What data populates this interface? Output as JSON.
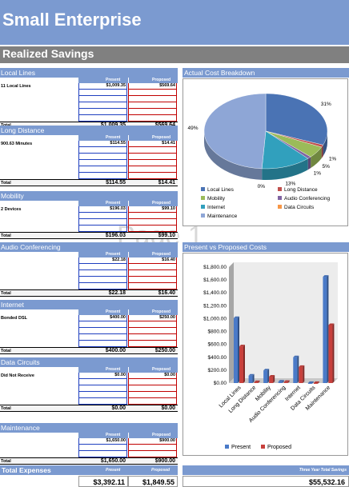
{
  "header": {
    "title": "Small Enterprise",
    "subtitle": "Realized Savings"
  },
  "watermark": "Page 1",
  "col_present": "Present",
  "col_proposed": "Proposed",
  "total_label": "Total",
  "sections": [
    {
      "title": "Local Lines",
      "rows": [
        {
          "name": "11 Local Lines",
          "present": "$1,009.35",
          "proposed": "$569.64"
        },
        {
          "name": "",
          "present": "",
          "proposed": ""
        },
        {
          "name": "",
          "present": "",
          "proposed": ""
        },
        {
          "name": "",
          "present": "",
          "proposed": ""
        },
        {
          "name": "",
          "present": "",
          "proposed": ""
        },
        {
          "name": "",
          "present": "",
          "proposed": ""
        }
      ],
      "total_present": "$1,009.35",
      "total_proposed": "$569.64"
    },
    {
      "title": "Long Distance",
      "rows": [
        {
          "name": "900.63 Minutes",
          "present": "$114.55",
          "proposed": "$14.41"
        },
        {
          "name": "",
          "present": "",
          "proposed": ""
        },
        {
          "name": "",
          "present": "",
          "proposed": ""
        },
        {
          "name": "",
          "present": "",
          "proposed": ""
        },
        {
          "name": "",
          "present": "",
          "proposed": ""
        },
        {
          "name": "",
          "present": "",
          "proposed": ""
        }
      ],
      "total_present": "$114.55",
      "total_proposed": "$14.41"
    },
    {
      "title": "Mobility",
      "rows": [
        {
          "name": "2 Devices",
          "present": "$196.03",
          "proposed": "$99.10"
        },
        {
          "name": "",
          "present": "",
          "proposed": ""
        },
        {
          "name": "",
          "present": "",
          "proposed": ""
        },
        {
          "name": "",
          "present": "",
          "proposed": ""
        }
      ],
      "total_present": "$196.03",
      "total_proposed": "$99.10"
    },
    {
      "title": "Audio Conferencing",
      "rows": [
        {
          "name": "",
          "present": "$22.18",
          "proposed": "$16.40"
        },
        {
          "name": "",
          "present": "",
          "proposed": ""
        },
        {
          "name": "",
          "present": "",
          "proposed": ""
        },
        {
          "name": "",
          "present": "",
          "proposed": ""
        },
        {
          "name": "",
          "present": "",
          "proposed": ""
        }
      ],
      "total_present": "$22.18",
      "total_proposed": "$16.40"
    },
    {
      "title": "Internet",
      "rows": [
        {
          "name": "Bonded DSL",
          "present": "$400.00",
          "proposed": "$250.00"
        },
        {
          "name": "",
          "present": "",
          "proposed": ""
        },
        {
          "name": "",
          "present": "",
          "proposed": ""
        },
        {
          "name": "",
          "present": "",
          "proposed": ""
        },
        {
          "name": "",
          "present": "",
          "proposed": ""
        }
      ],
      "total_present": "$400.00",
      "total_proposed": "$250.00"
    },
    {
      "title": "Data Circuits",
      "rows": [
        {
          "name": "Did Not Receive",
          "present": "$0.00",
          "proposed": "$0.00"
        },
        {
          "name": "",
          "present": "",
          "proposed": ""
        },
        {
          "name": "",
          "present": "",
          "proposed": ""
        },
        {
          "name": "",
          "present": "",
          "proposed": ""
        },
        {
          "name": "",
          "present": "",
          "proposed": ""
        }
      ],
      "total_present": "$0.00",
      "total_proposed": "$0.00"
    },
    {
      "title": "Maintenance",
      "rows": [
        {
          "name": "",
          "present": "$1,650.00",
          "proposed": "$900.00"
        },
        {
          "name": "",
          "present": "",
          "proposed": ""
        },
        {
          "name": "",
          "present": "",
          "proposed": ""
        }
      ],
      "total_present": "$1,650.00",
      "total_proposed": "$900.00"
    }
  ],
  "total_expenses": {
    "title": "Total Expenses",
    "present": "$3,392.11",
    "proposed": "$1,849.55"
  },
  "three_year": {
    "label": "Three Year Total Savings",
    "value": "$55,532.16"
  },
  "colors": {
    "header_blue": "#7b9ad0",
    "subbar_gray": "#808080",
    "present_blue": "#4a7ac8",
    "proposed_red": "#c8403c"
  },
  "chart_data": [
    {
      "type": "pie",
      "title": "Actual Cost Breakdown",
      "categories": [
        "Local Lines",
        "Long Distance",
        "Mobility",
        "Audio Conferencing",
        "Internet",
        "Data Circuits",
        "Maintenance"
      ],
      "values": [
        31,
        1,
        5,
        1,
        13,
        0,
        49
      ],
      "labels": [
        "31%",
        "1%",
        "5%",
        "1%",
        "13%",
        "0%",
        "49%"
      ],
      "colors": [
        "#4a73b4",
        "#c0504d",
        "#9bbb59",
        "#8064a2",
        "#31a0bd",
        "#f79646",
        "#8ea6d6"
      ],
      "legend": "bottom"
    },
    {
      "type": "bar",
      "title": "Present vs Proposed Costs",
      "categories": [
        "Local Lines",
        "Long Distance",
        "Mobility",
        "Audio Conferencing",
        "Internet",
        "Data Circuits",
        "Maintenance"
      ],
      "series": [
        {
          "name": "Present",
          "values": [
            1009.35,
            114.55,
            196.03,
            22.18,
            400.0,
            0.0,
            1650.0
          ]
        },
        {
          "name": "Proposed",
          "values": [
            569.64,
            14.41,
            99.1,
            16.4,
            250.0,
            0.0,
            900.0
          ]
        }
      ],
      "yticks": [
        "$0.00",
        "$200.00",
        "$400.00",
        "$600.00",
        "$800.00",
        "$1,000.00",
        "$1,200.00",
        "$1,400.00",
        "$1,600.00",
        "$1,800.00"
      ],
      "ylim": [
        0,
        1800
      ],
      "legend": "bottom"
    }
  ]
}
